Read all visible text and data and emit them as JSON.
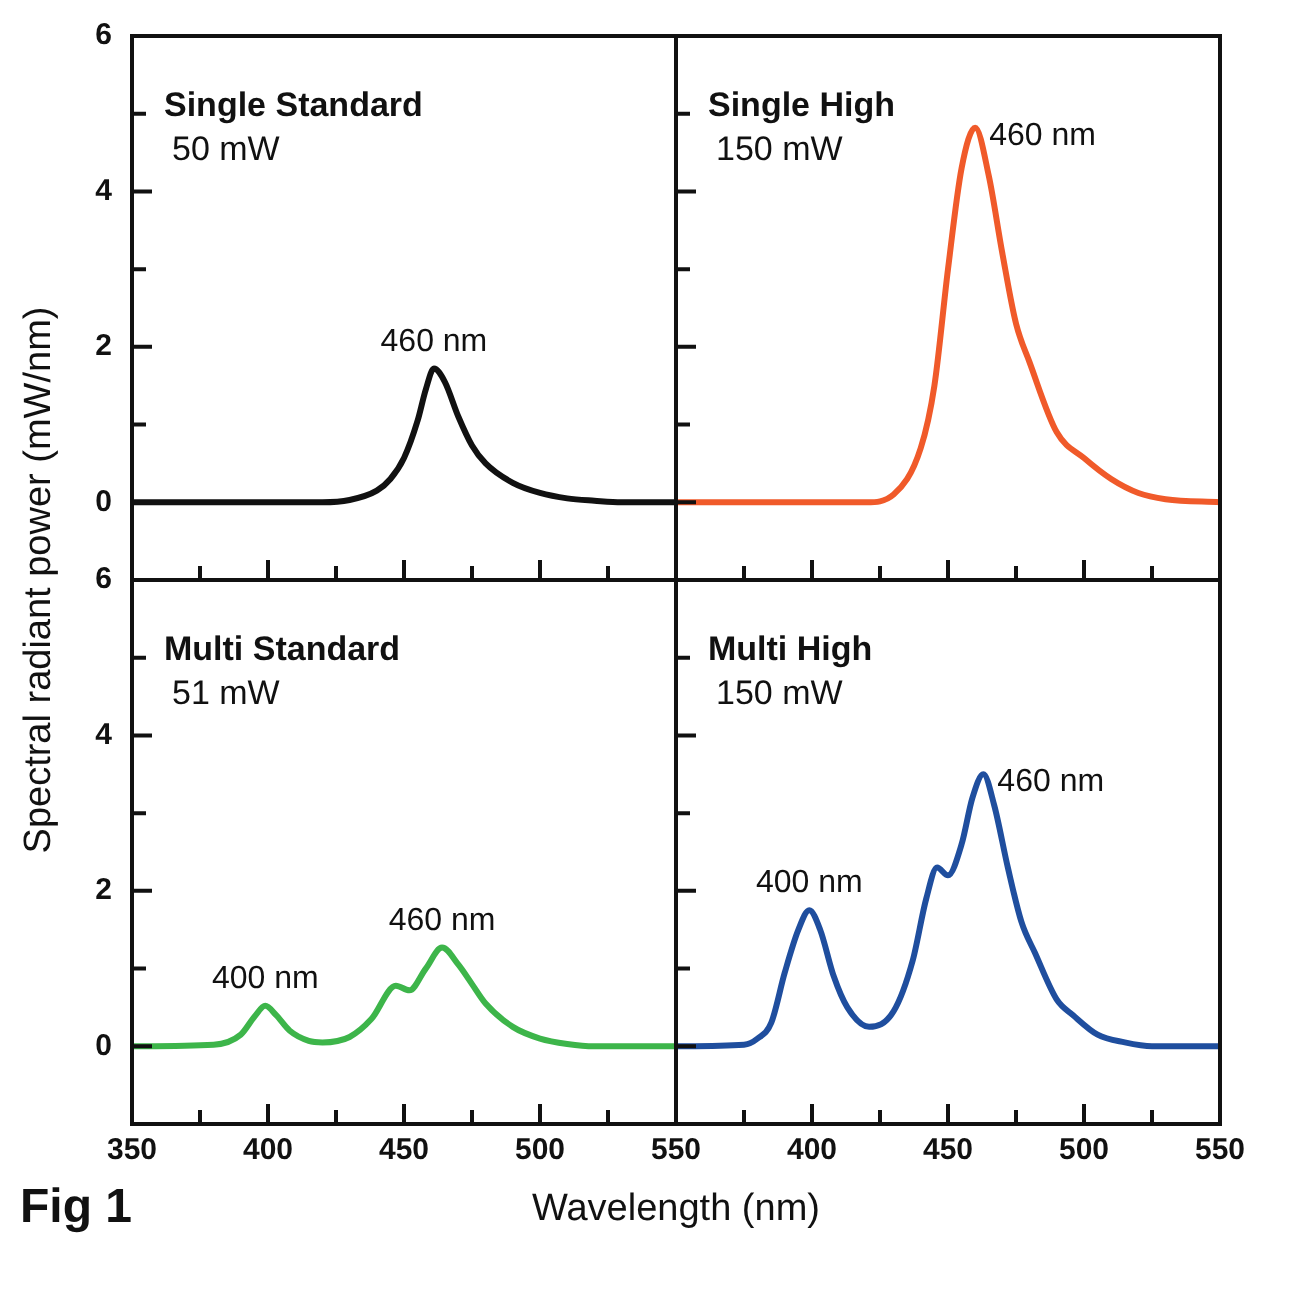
{
  "chart_data": [
    {
      "type": "line",
      "title": "Single Standard",
      "subtitle": "50 mW",
      "ylabel": "Spectral radiant power (mW/nm)",
      "tick_labels": "y",
      "x": [
        350,
        420,
        430,
        440,
        445,
        450,
        455,
        458,
        461,
        465,
        470,
        475,
        480,
        490,
        500,
        510,
        520,
        530,
        550
      ],
      "series": [
        {
          "color": "#111111",
          "values": [
            0,
            0,
            0.03,
            0.15,
            0.3,
            0.57,
            1.05,
            1.45,
            1.72,
            1.55,
            1.1,
            0.73,
            0.5,
            0.25,
            0.12,
            0.05,
            0.02,
            0,
            0
          ]
        }
      ],
      "xlim": [
        350,
        550
      ],
      "xticks": [
        {
          "value": 350,
          "label": null
        },
        {
          "value": 375,
          "label": null
        },
        {
          "value": 400,
          "label": null
        },
        {
          "value": 425,
          "label": null
        },
        {
          "value": 450,
          "label": null
        },
        {
          "value": 475,
          "label": null
        },
        {
          "value": 500,
          "label": null
        },
        {
          "value": 525,
          "label": null
        },
        {
          "value": 550,
          "label": null
        }
      ],
      "ylim": [
        -1,
        6
      ],
      "yticks": [
        0,
        {
          "value": 1,
          "label": null
        },
        2,
        {
          "value": 3,
          "label": null
        },
        4,
        {
          "value": 5,
          "label": null
        },
        6
      ],
      "annotations": [
        {
          "text": "460 nm",
          "x": 461,
          "y": 1.72
        }
      ]
    },
    {
      "type": "line",
      "title": "Single High",
      "subtitle": "150 mW",
      "tick_labels": false,
      "x": [
        350,
        420,
        430,
        440,
        445,
        450,
        455,
        460,
        465,
        470,
        475,
        480,
        490,
        500,
        510,
        520,
        530,
        550
      ],
      "series": [
        {
          "color": "#f05a2a",
          "values": [
            0,
            0,
            0.1,
            0.7,
            1.5,
            3.0,
            4.3,
            4.82,
            4.2,
            3.2,
            2.3,
            1.8,
            0.9,
            0.57,
            0.3,
            0.12,
            0.04,
            0
          ]
        }
      ],
      "xlim": [
        350,
        550
      ],
      "xticks": [
        {
          "value": 350,
          "label": null
        },
        {
          "value": 375,
          "label": null
        },
        {
          "value": 400,
          "label": null
        },
        {
          "value": 425,
          "label": null
        },
        {
          "value": 450,
          "label": null
        },
        {
          "value": 475,
          "label": null
        },
        {
          "value": 500,
          "label": null
        },
        {
          "value": 525,
          "label": null
        },
        {
          "value": 550,
          "label": null
        }
      ],
      "ylim": [
        -1,
        6
      ],
      "yticks": [
        {
          "value": 0,
          "label": null
        },
        {
          "value": 1,
          "label": null
        },
        {
          "value": 2,
          "label": null
        },
        {
          "value": 3,
          "label": null
        },
        {
          "value": 4,
          "label": null
        },
        {
          "value": 5,
          "label": null
        },
        {
          "value": 6,
          "label": null
        }
      ],
      "annotations": [
        {
          "text": "460 nm",
          "x": 460,
          "y": 4.82
        }
      ]
    },
    {
      "type": "line",
      "title": "Multi Standard",
      "subtitle": "51 mW",
      "xlabel": "Wavelength (nm)",
      "x": [
        350,
        380,
        390,
        395,
        399,
        403,
        408,
        415,
        420,
        430,
        438,
        447,
        452,
        458,
        464,
        470,
        475,
        480,
        490,
        500,
        510,
        520,
        550
      ],
      "series": [
        {
          "color": "#3db54a",
          "values": [
            0,
            0.02,
            0.15,
            0.38,
            0.52,
            0.4,
            0.2,
            0.07,
            0.05,
            0.12,
            0.35,
            0.78,
            0.72,
            1.0,
            1.27,
            1.05,
            0.8,
            0.55,
            0.25,
            0.1,
            0.03,
            0,
            0
          ]
        }
      ],
      "xlim": [
        350,
        550
      ],
      "xticks": [
        350,
        {
          "value": 375,
          "label": null
        },
        400,
        {
          "value": 425,
          "label": null
        },
        450,
        {
          "value": 475,
          "label": null
        },
        500,
        {
          "value": 525,
          "label": null
        },
        550
      ],
      "ylim": [
        -1,
        6
      ],
      "yticks": [
        0,
        {
          "value": 1,
          "label": null
        },
        2,
        {
          "value": 3,
          "label": null
        },
        4,
        {
          "value": 5,
          "label": null
        },
        6
      ],
      "annotations": [
        {
          "text": "400 nm",
          "x": 399,
          "y": 0.52
        },
        {
          "text": "460 nm",
          "x": 464,
          "y": 1.27
        },
        "Fig 1"
      ]
    },
    {
      "type": "line",
      "title": "Multi High",
      "subtitle": "150 mW",
      "tick_labels": "x",
      "x": [
        350,
        375,
        380,
        385,
        390,
        395,
        399,
        403,
        408,
        413,
        421,
        430,
        437,
        442,
        446,
        450,
        455,
        459,
        463,
        467,
        472,
        477,
        482,
        490,
        496,
        505,
        515,
        525,
        550
      ],
      "series": [
        {
          "color": "#1f4e9e",
          "values": [
            0,
            0.02,
            0.1,
            0.3,
            0.95,
            1.5,
            1.75,
            1.5,
            0.9,
            0.5,
            0.25,
            0.45,
            1.1,
            1.9,
            2.3,
            2.2,
            2.6,
            3.2,
            3.5,
            3.1,
            2.3,
            1.6,
            1.2,
            0.6,
            0.4,
            0.15,
            0.05,
            0,
            0
          ]
        }
      ],
      "xlim": [
        350,
        550
      ],
      "xticks": [
        {
          "value": 350,
          "label": null
        },
        {
          "value": 375,
          "label": null
        },
        400,
        {
          "value": 425,
          "label": null
        },
        450,
        {
          "value": 475,
          "label": null
        },
        500,
        {
          "value": 525,
          "label": null
        },
        550
      ],
      "ylim": [
        -1,
        6
      ],
      "yticks": [
        {
          "value": 0,
          "label": null
        },
        {
          "value": 1,
          "label": null
        },
        {
          "value": 2,
          "label": null
        },
        {
          "value": 3,
          "label": null
        },
        {
          "value": 4,
          "label": null
        },
        {
          "value": 5,
          "label": null
        },
        {
          "value": 6,
          "label": null
        }
      ],
      "annotations": [
        {
          "text": "400 nm",
          "x": 399,
          "y": 1.75
        },
        {
          "text": "460 nm",
          "x": 463,
          "y": 3.5
        }
      ]
    }
  ]
}
